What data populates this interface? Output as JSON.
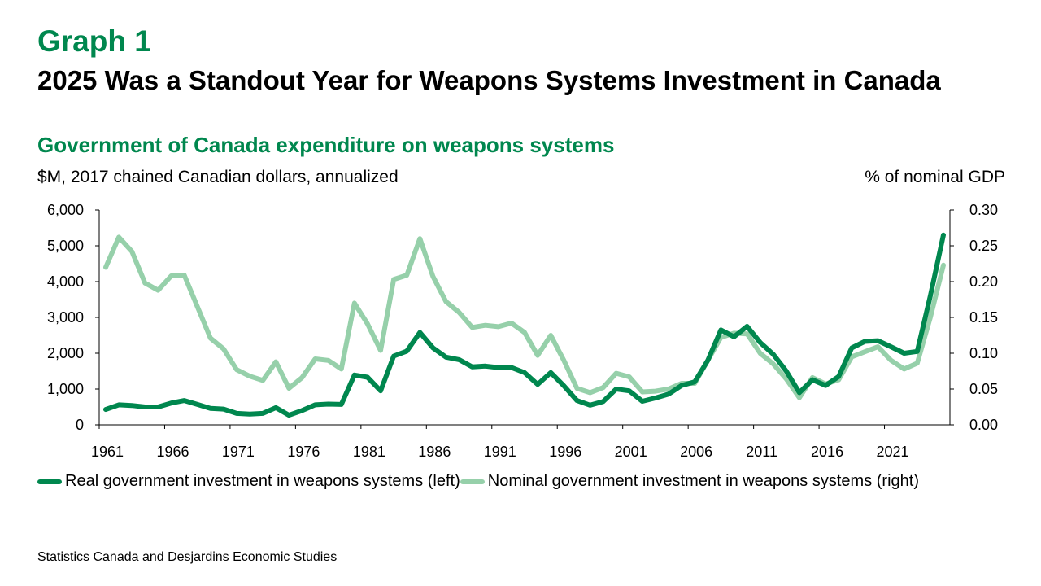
{
  "header": {
    "graph_label": "Graph 1",
    "headline": "2025 Was a Standout Year for Weapons Systems Investment in Canada"
  },
  "footer": {
    "source": "Statistics Canada and Desjardins Economic Studies"
  },
  "chart_data": {
    "type": "line",
    "title": "Government of Canada expenditure on weapons systems",
    "ylabel_left": "$M, 2017 chained Canadian dollars, annualized",
    "ylabel_right": "% of nominal GDP",
    "ylim_left": [
      0,
      6000
    ],
    "ylim_right": [
      0,
      0.3
    ],
    "yticks_left": [
      "6,000",
      "5,000",
      "4,000",
      "3,000",
      "2,000",
      "1,000",
      "0"
    ],
    "yticks_right": [
      "0.30",
      "0.25",
      "0.20",
      "0.15",
      "0.10",
      "0.05",
      "0.00"
    ],
    "xticks": [
      "1961",
      "1966",
      "1971",
      "1976",
      "1981",
      "1986",
      "1991",
      "1996",
      "2001",
      "2006",
      "2011",
      "2016",
      "2021"
    ],
    "x": [
      1961,
      1962,
      1963,
      1964,
      1965,
      1966,
      1967,
      1968,
      1969,
      1970,
      1971,
      1972,
      1973,
      1974,
      1975,
      1976,
      1977,
      1978,
      1979,
      1980,
      1981,
      1982,
      1983,
      1984,
      1985,
      1986,
      1987,
      1988,
      1989,
      1990,
      1991,
      1992,
      1993,
      1994,
      1995,
      1996,
      1997,
      1998,
      1999,
      2000,
      2001,
      2002,
      2003,
      2004,
      2005,
      2006,
      2007,
      2008,
      2009,
      2010,
      2011,
      2012,
      2013,
      2014,
      2015,
      2016,
      2017,
      2018,
      2019,
      2020,
      2021,
      2022,
      2023,
      2024,
      2025
    ],
    "grid": false,
    "legend_position": "bottom",
    "series": [
      {
        "name": "Real government investment in weapons systems (left)",
        "axis": "left",
        "color": "#00874e",
        "values": [
          430,
          560,
          540,
          500,
          500,
          610,
          680,
          570,
          460,
          440,
          320,
          300,
          320,
          480,
          270,
          400,
          560,
          580,
          570,
          1390,
          1330,
          950,
          1920,
          2060,
          2580,
          2150,
          1890,
          1820,
          1620,
          1640,
          1600,
          1600,
          1460,
          1130,
          1460,
          1090,
          680,
          550,
          650,
          1000,
          950,
          660,
          750,
          860,
          1100,
          1200,
          1800,
          2650,
          2460,
          2750,
          2300,
          1970,
          1500,
          900,
          1260,
          1100,
          1350,
          2150,
          2330,
          2350,
          2180,
          2000,
          2050,
          3600,
          5300
        ]
      },
      {
        "name": "Nominal government investment in weapons systems (right)",
        "axis": "right",
        "color": "#96d0aa",
        "values": [
          0.22,
          0.262,
          0.242,
          0.198,
          0.188,
          0.208,
          0.209,
          0.165,
          0.121,
          0.106,
          0.077,
          0.068,
          0.062,
          0.088,
          0.051,
          0.066,
          0.092,
          0.09,
          0.078,
          0.17,
          0.141,
          0.104,
          0.203,
          0.209,
          0.26,
          0.207,
          0.172,
          0.157,
          0.136,
          0.139,
          0.137,
          0.142,
          0.129,
          0.097,
          0.125,
          0.09,
          0.051,
          0.045,
          0.052,
          0.072,
          0.067,
          0.046,
          0.047,
          0.05,
          0.058,
          0.058,
          0.09,
          0.122,
          0.128,
          0.127,
          0.1,
          0.085,
          0.064,
          0.038,
          0.066,
          0.057,
          0.063,
          0.095,
          0.102,
          0.109,
          0.09,
          0.078,
          0.086,
          0.15,
          0.223
        ]
      }
    ]
  }
}
